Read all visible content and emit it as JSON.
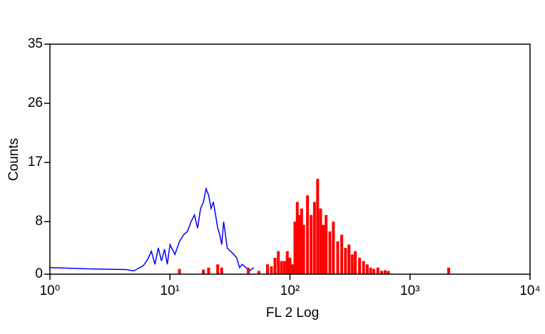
{
  "chart_data": {
    "type": "histogram",
    "x_label": "FL 2 Log",
    "y_label": "Counts",
    "xscale": "log",
    "xlim": [
      1,
      10000
    ],
    "xticks": [
      {
        "value": 1,
        "label": "10⁰"
      },
      {
        "value": 10,
        "label": "10¹"
      },
      {
        "value": 100,
        "label": "10²"
      },
      {
        "value": 1000,
        "label": "10³"
      },
      {
        "value": 10000,
        "label": "10⁴"
      }
    ],
    "ylim": [
      0,
      35
    ],
    "yticks": [
      0,
      8,
      17,
      26,
      35
    ],
    "series": [
      {
        "type": "line",
        "color": "#0000ff",
        "x": [
          1,
          2.2,
          4.3,
          5,
          6,
          6.5,
          7,
          7.5,
          8,
          8.5,
          9,
          9.5,
          10,
          11,
          12,
          13,
          14,
          15,
          16,
          17,
          18,
          19,
          20,
          21,
          22,
          23,
          24,
          25,
          26,
          27,
          28,
          30,
          32,
          34,
          36,
          38,
          40,
          43,
          46,
          50
        ],
        "values": [
          1,
          0.8,
          0.7,
          0.5,
          1.3,
          2.2,
          3.5,
          1.5,
          4,
          2,
          3.8,
          1.5,
          4.5,
          3,
          5,
          6,
          6.5,
          8,
          9,
          7,
          10,
          11,
          13,
          12,
          10,
          11,
          9,
          7,
          6,
          4.5,
          8,
          4,
          3.5,
          3,
          2.5,
          1,
          1.5,
          1,
          0.5,
          1
        ]
      },
      {
        "type": "bar",
        "color": "#ff0000",
        "x": [
          12,
          19,
          21,
          25,
          27,
          45,
          55,
          65,
          70,
          75,
          80,
          85,
          90,
          95,
          100,
          105,
          110,
          115,
          120,
          125,
          130,
          140,
          150,
          160,
          170,
          180,
          190,
          200,
          215,
          230,
          250,
          270,
          290,
          310,
          330,
          350,
          380,
          410,
          440,
          470,
          500,
          540,
          580,
          620,
          660,
          2100
        ],
        "values": [
          0.8,
          0.7,
          1,
          1.5,
          1,
          1,
          0.5,
          1.5,
          1.2,
          2.5,
          3.5,
          2,
          2,
          3.5,
          2.5,
          1.5,
          8,
          11,
          9,
          10,
          7.5,
          12,
          9,
          11,
          14.5,
          10,
          7.5,
          9,
          6.5,
          8,
          5,
          6,
          4,
          4.5,
          3,
          3.5,
          2.5,
          2,
          1.5,
          1,
          0.8,
          1,
          0.5,
          0.6,
          0.5,
          1
        ]
      }
    ]
  }
}
